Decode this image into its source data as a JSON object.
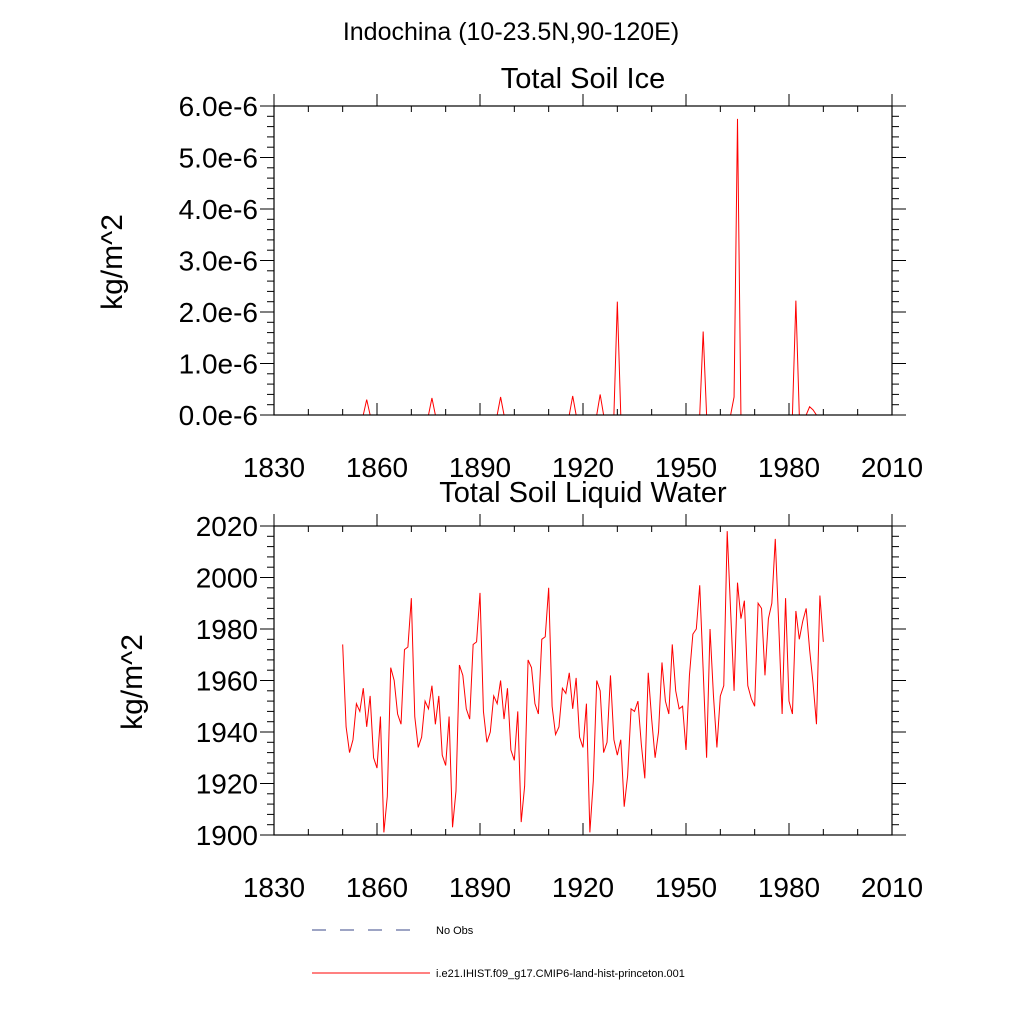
{
  "figure": {
    "title": "Indochina (10-23.5N,90-120E)"
  },
  "chart_data": [
    {
      "type": "line",
      "title": "Total Soil Ice",
      "xlabel": "",
      "ylabel": "kg/m^2",
      "xlim": [
        1830,
        2010
      ],
      "ylim": [
        0.0,
        6e-06
      ],
      "xticks": [
        1830,
        1860,
        1890,
        1920,
        1950,
        1980,
        2010
      ],
      "yticks": [
        {
          "value": 0.0,
          "label": "0.0e-6"
        },
        {
          "value": 1e-06,
          "label": "1.0e-6"
        },
        {
          "value": 2e-06,
          "label": "2.0e-6"
        },
        {
          "value": 3e-06,
          "label": "3.0e-6"
        },
        {
          "value": 4e-06,
          "label": "4.0e-6"
        },
        {
          "value": 5e-06,
          "label": "5.0e-6"
        },
        {
          "value": 6e-06,
          "label": "6.0e-6"
        }
      ],
      "series": [
        {
          "name": "i.e21.IHIST.f09_g17.CMIP6-land-hist-princeton.001",
          "color": "#ff0000",
          "x_start": 1850,
          "values": [
            0,
            0,
            0,
            0,
            0,
            0,
            0,
            3e-07,
            0,
            0,
            0,
            0,
            0,
            0,
            0,
            0,
            0,
            0,
            0,
            0,
            0,
            0,
            0,
            0,
            0,
            0,
            3.3e-07,
            0,
            0,
            0,
            0,
            0,
            0,
            0,
            0,
            0,
            0,
            0,
            0,
            0,
            0,
            0,
            0,
            0,
            0,
            0,
            3.5e-07,
            0,
            0,
            0,
            0,
            0,
            0,
            0,
            0,
            0,
            0,
            0,
            0,
            0,
            0,
            0,
            0,
            0,
            0,
            0,
            0,
            3.7e-07,
            0,
            0,
            0,
            0,
            0,
            0,
            0,
            4e-07,
            0,
            0,
            0,
            0,
            2.2e-06,
            0,
            0,
            0,
            0,
            0,
            0,
            0,
            0,
            0,
            0,
            0,
            0,
            0,
            0,
            0,
            0,
            0,
            0,
            0,
            0,
            0,
            0,
            0,
            0,
            1.62e-06,
            0,
            0,
            0,
            0,
            0,
            0,
            0,
            0,
            3.5e-07,
            5.75e-06,
            0,
            0,
            0,
            0,
            0,
            0,
            0,
            0,
            0,
            0,
            0,
            0,
            0,
            0,
            0,
            0,
            2.22e-06,
            0,
            0,
            0,
            1.6e-07,
            1e-07,
            0,
            0,
            0,
            0,
            0,
            0,
            0,
            0,
            0,
            0,
            0,
            0,
            0,
            0,
            0,
            0
          ]
        }
      ]
    },
    {
      "type": "line",
      "title": "Total Soil Liquid Water",
      "xlabel": "",
      "ylabel": "kg/m^2",
      "xlim": [
        1830,
        2010
      ],
      "ylim": [
        1900,
        2020
      ],
      "xticks": [
        1830,
        1860,
        1890,
        1920,
        1950,
        1980,
        2010
      ],
      "yticks": [
        {
          "value": 1900,
          "label": "1900"
        },
        {
          "value": 1920,
          "label": "1920"
        },
        {
          "value": 1940,
          "label": "1940"
        },
        {
          "value": 1960,
          "label": "1960"
        },
        {
          "value": 1980,
          "label": "1980"
        },
        {
          "value": 2000,
          "label": "2000"
        },
        {
          "value": 2020,
          "label": "2020"
        }
      ],
      "series": [
        {
          "name": "i.e21.IHIST.f09_g17.CMIP6-land-hist-princeton.001",
          "color": "#ff0000",
          "x_start": 1850,
          "values": [
            1974,
            1942,
            1932,
            1937,
            1951,
            1948,
            1957,
            1942,
            1954,
            1930,
            1926,
            1946,
            1901,
            1915,
            1965,
            1960,
            1947,
            1943,
            1972,
            1973,
            1992,
            1946,
            1934,
            1938,
            1952,
            1949,
            1958,
            1943,
            1954,
            1931,
            1927,
            1946,
            1903,
            1917,
            1966,
            1962,
            1949,
            1945,
            1974,
            1975,
            1994,
            1948,
            1936,
            1940,
            1954,
            1951,
            1960,
            1945,
            1957,
            1933,
            1929,
            1948,
            1905,
            1919,
            1968,
            1965,
            1951,
            1947,
            1976,
            1977,
            1996,
            1950,
            1939,
            1942,
            1957,
            1955,
            1963,
            1949,
            1961,
            1938,
            1934,
            1951,
            1901,
            1921,
            1960,
            1956,
            1932,
            1936,
            1962,
            1937,
            1931,
            1937,
            1911,
            1923,
            1949,
            1948,
            1952,
            1935,
            1922,
            1963,
            1945,
            1930,
            1940,
            1967,
            1952,
            1947,
            1974,
            1956,
            1949,
            1950,
            1933,
            1962,
            1978,
            1980,
            1997,
            1964,
            1930,
            1980,
            1954,
            1934,
            1954,
            1958,
            2018,
            1987,
            1956,
            1998,
            1984,
            1991,
            1958,
            1953,
            1950,
            1990,
            1988,
            1962,
            1984,
            1990,
            2015,
            1982,
            1947,
            1992,
            1952,
            1947,
            1987,
            1976,
            1983,
            1988,
            1972,
            1959,
            1943,
            1993,
            1975
          ]
        }
      ]
    }
  ],
  "legend": [
    {
      "label": "No Obs",
      "style": "dashed",
      "color": "#3b4a8a"
    },
    {
      "label": "i.e21.IHIST.f09_g17.CMIP6-land-hist-princeton.001",
      "style": "solid",
      "color": "#ff0000"
    }
  ]
}
